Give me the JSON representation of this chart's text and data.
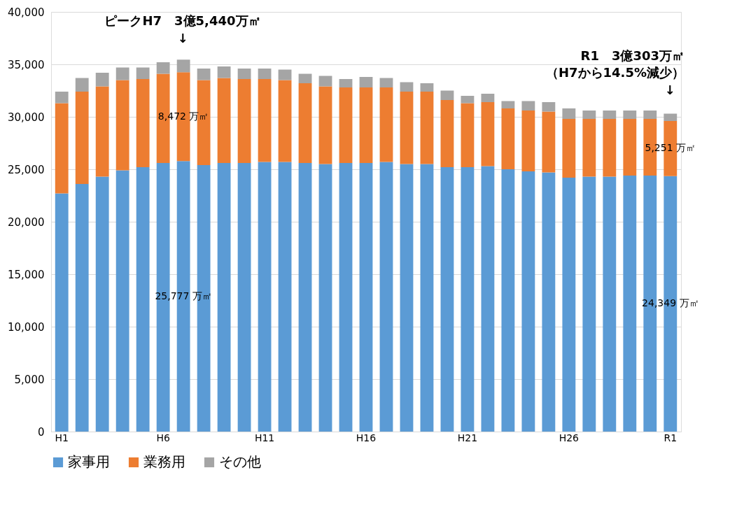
{
  "chart_data": {
    "type": "bar",
    "stacked": true,
    "categories": [
      "H1",
      null,
      null,
      null,
      null,
      "H6",
      null,
      null,
      null,
      null,
      "H11",
      null,
      null,
      null,
      null,
      "H16",
      null,
      null,
      null,
      null,
      "H21",
      null,
      null,
      null,
      null,
      "H26",
      null,
      null,
      null,
      null,
      "R1"
    ],
    "series": [
      {
        "name": "家事用",
        "color": "#5b9bd5",
        "values": [
          22700,
          23600,
          24300,
          24900,
          25200,
          25600,
          25777,
          25400,
          25600,
          25600,
          25700,
          25700,
          25600,
          25500,
          25600,
          25600,
          25700,
          25500,
          25500,
          25200,
          25200,
          25300,
          25000,
          24800,
          24700,
          24200,
          24300,
          24300,
          24400,
          24400,
          24349
        ],
        "value_labels": [
          null,
          null,
          null,
          null,
          null,
          null,
          "25,777 万㎡",
          null,
          null,
          null,
          null,
          null,
          null,
          null,
          null,
          null,
          null,
          null,
          null,
          null,
          null,
          null,
          null,
          null,
          null,
          null,
          null,
          null,
          null,
          null,
          "24,349 万㎡"
        ]
      },
      {
        "name": "業務用",
        "color": "#ed7d31",
        "values": [
          8600,
          8800,
          8600,
          8600,
          8400,
          8500,
          8472,
          8100,
          8100,
          8000,
          7900,
          7800,
          7600,
          7400,
          7200,
          7200,
          7100,
          6900,
          6900,
          6400,
          6100,
          6100,
          5800,
          5800,
          5800,
          5600,
          5500,
          5500,
          5400,
          5400,
          5251
        ],
        "value_labels": [
          null,
          null,
          null,
          null,
          null,
          null,
          "8,472 万㎡",
          null,
          null,
          null,
          null,
          null,
          null,
          null,
          null,
          null,
          null,
          null,
          null,
          null,
          null,
          null,
          null,
          null,
          null,
          null,
          null,
          null,
          null,
          null,
          "5,251 万㎡"
        ]
      },
      {
        "name": "その他",
        "color": "#a5a5a5",
        "values": [
          1100,
          1300,
          1300,
          1200,
          1100,
          1100,
          1200,
          1100,
          1100,
          1000,
          1000,
          1000,
          900,
          1000,
          800,
          1000,
          900,
          900,
          800,
          900,
          700,
          800,
          700,
          900,
          900,
          1000,
          800,
          800,
          800,
          800,
          700
        ]
      }
    ],
    "ylim": [
      0,
      40000
    ],
    "yticks": [
      0,
      {
        "value": 5000,
        "label": "5,000"
      },
      {
        "value": 10000,
        "label": "10,000"
      },
      {
        "value": 15000,
        "label": "15,000"
      },
      {
        "value": 20000,
        "label": "20,000"
      },
      {
        "value": 25000,
        "label": "25,000"
      },
      {
        "value": 30000,
        "label": "30,000"
      },
      {
        "value": 35000,
        "label": "35,000"
      },
      {
        "value": 40000,
        "label": "40,000"
      }
    ],
    "grid": "y",
    "legend": "bottom",
    "annotations": [
      "ピークH7　3億5,440万㎡",
      "↓",
      "R1　3億303万㎡",
      "（H7から14.5%減少）",
      "↓"
    ]
  }
}
